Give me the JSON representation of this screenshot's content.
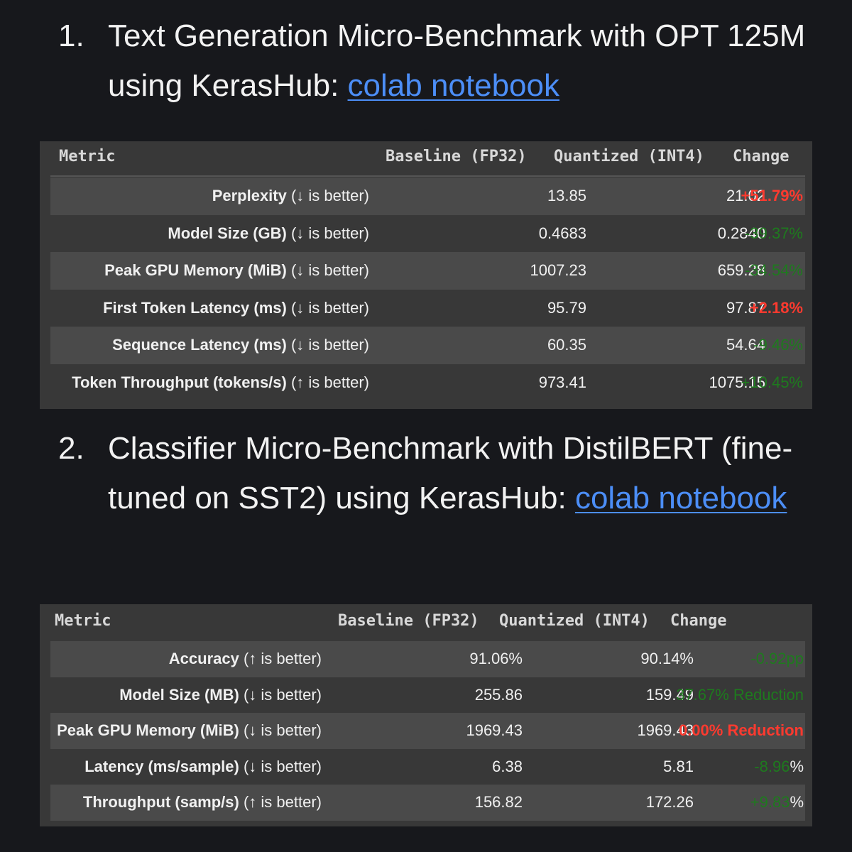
{
  "section1": {
    "number": "1.",
    "title": "Text Generation Micro-Benchmark with OPT 125M using KerasHub: ",
    "link": "colab notebook"
  },
  "table1": {
    "headers": {
      "metric": "Metric",
      "baseline": "Baseline (FP32)",
      "quantized": "Quantized (INT4)",
      "change": "Change"
    },
    "rows": [
      {
        "name": "Perplexity",
        "note": " (↓ is better)",
        "baseline": "13.85",
        "quantized": "21.02",
        "change": "+51.79%",
        "tone": "red"
      },
      {
        "name": "Model Size (GB)",
        "note": " (↓ is better)",
        "baseline": "0.4683",
        "quantized": "0.2840",
        "change": "-39.37%",
        "tone": "green"
      },
      {
        "name": "Peak GPU Memory (MiB)",
        "note": " (↓ is better)",
        "baseline": "1007.23",
        "quantized": "659.28",
        "change": "-34.54%",
        "tone": "green"
      },
      {
        "name": "First Token Latency (ms)",
        "note": " (↓ is better)",
        "baseline": "95.79",
        "quantized": "97.87",
        "change": "+2.18%",
        "tone": "red"
      },
      {
        "name": "Sequence Latency (ms)",
        "note": " (↓ is better)",
        "baseline": "60.35",
        "quantized": "54.64",
        "change": "-9.46%",
        "tone": "green"
      },
      {
        "name": "Token Throughput (tokens/s)",
        "note": " (↑ is better)",
        "baseline": "973.41",
        "quantized": "1075.15",
        "change": "+10.45%",
        "tone": "green"
      }
    ]
  },
  "section2": {
    "number": "2.",
    "title": "Classifier Micro-Benchmark with DistilBERT (fine-tuned on SST2) using KerasHub: ",
    "link": "colab notebook"
  },
  "table2": {
    "headers": {
      "metric": "Metric",
      "baseline": "Baseline (FP32)",
      "quantized": "Quantized (INT4)",
      "change": "Change"
    },
    "rows": [
      {
        "name": "Accuracy",
        "note": " (↑ is better)",
        "baseline": "91.06%",
        "quantized": "90.14%",
        "change": "-0.92pp",
        "suffix": "",
        "tone": "green"
      },
      {
        "name": "Model Size (MB)",
        "note": " (↓ is better)",
        "baseline": "255.86",
        "quantized": "159.49",
        "change": "37.67% Reduction",
        "suffix": "",
        "tone": "green"
      },
      {
        "name": "Peak GPU Memory (MiB)",
        "note": " (↓ is better)",
        "baseline": "1969.43",
        "quantized": "1969.43",
        "change": "0.00% Reduction",
        "suffix": "",
        "tone": "red"
      },
      {
        "name": "Latency (ms/sample)",
        "note": " (↓ is better)",
        "baseline": "6.38",
        "quantized": "5.81",
        "change": "-8.96",
        "suffix": "%",
        "tone": "green"
      },
      {
        "name": "Throughput (samp/s)",
        "note": " (↑ is better)",
        "baseline": "156.82",
        "quantized": "172.26",
        "change": "+9.83",
        "suffix": "%",
        "tone": "green"
      }
    ]
  },
  "colors": {
    "background": "#17181c",
    "link": "#4c8ef7",
    "negative": "#ff3a2f",
    "positive": "#1e7a1e"
  }
}
